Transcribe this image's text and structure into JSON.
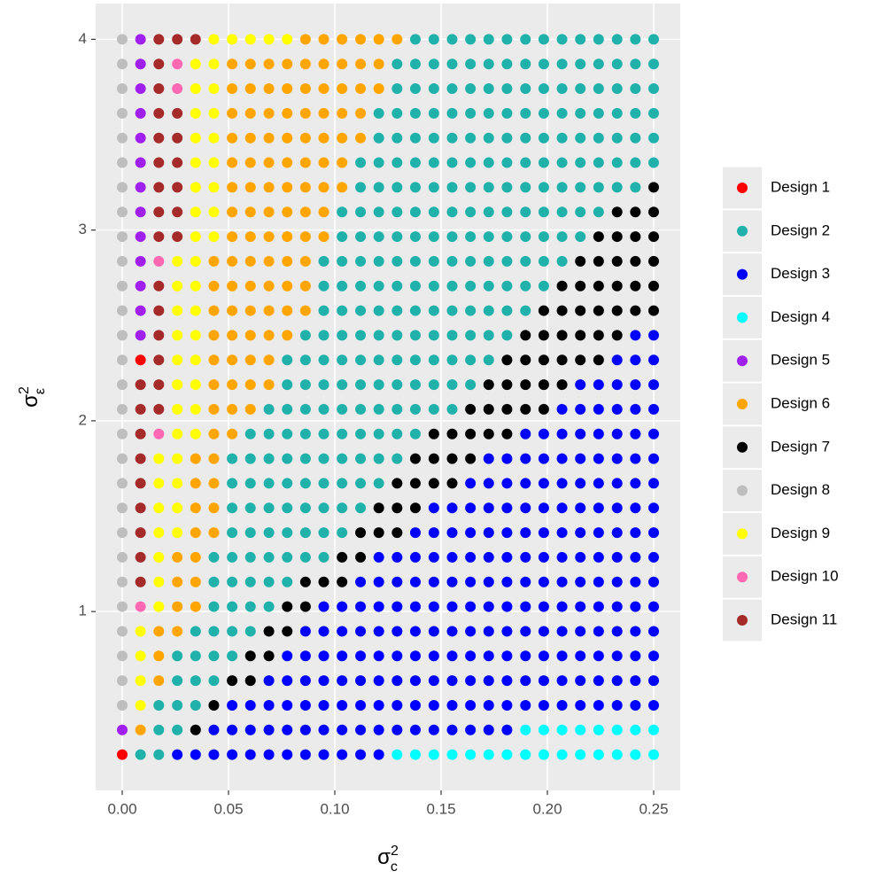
{
  "chart_data": {
    "type": "scatter",
    "x_label": {
      "base": "σ",
      "sup": "2",
      "sub": "c"
    },
    "y_label": {
      "base": "σ",
      "sup": "2",
      "sub": "ε"
    },
    "xlim": [
      -0.0125,
      0.2625
    ],
    "ylim": [
      0.0625,
      4.1875
    ],
    "xticks": [
      {
        "value": 0,
        "label": "0.00"
      },
      {
        "value": 0.05,
        "label": "0.05"
      },
      {
        "value": 0.1,
        "label": "0.10"
      },
      {
        "value": 0.15,
        "label": "0.15"
      },
      {
        "value": 0.2,
        "label": "0.20"
      },
      {
        "value": 0.25,
        "label": "0.25"
      }
    ],
    "yticks": [
      1,
      2,
      3,
      4
    ],
    "grid": true,
    "legend": "right",
    "x": [
      0,
      0.0086,
      0.0172,
      0.0259,
      0.0345,
      0.0431,
      0.0517,
      0.0603,
      0.069,
      0.0776,
      0.0862,
      0.0948,
      0.1034,
      0.1121,
      0.1207,
      0.1293,
      0.1379,
      0.1466,
      0.1552,
      0.1638,
      0.1724,
      0.181,
      0.1897,
      0.1983,
      0.2069,
      0.2155,
      0.2241,
      0.2328,
      0.2414,
      0.25
    ],
    "y": [
      0.25,
      0.3793,
      0.5086,
      0.6379,
      0.7672,
      0.8966,
      1.0259,
      1.1552,
      1.2845,
      1.4138,
      1.5431,
      1.6724,
      1.8017,
      1.931,
      2.0603,
      2.1897,
      2.319,
      2.4483,
      2.5776,
      2.7069,
      2.8362,
      2.9655,
      3.0948,
      3.2241,
      3.3534,
      3.4828,
      3.6121,
      3.7414,
      3.8707,
      4
    ],
    "series": [
      {
        "name": "Design 1",
        "color": "#ff0000"
      },
      {
        "name": "Design 2",
        "color": "#20b2aa"
      },
      {
        "name": "Design 3",
        "color": "#0000ff"
      },
      {
        "name": "Design 4",
        "color": "#00ffff"
      },
      {
        "name": "Design 5",
        "color": "#a020f0"
      },
      {
        "name": "Design 6",
        "color": "#ffa500"
      },
      {
        "name": "Design 7",
        "color": "#000000"
      },
      {
        "name": "Design 8",
        "color": "#bebebe"
      },
      {
        "name": "Design 9",
        "color": "#ffff00"
      },
      {
        "name": "Design 10",
        "color": "#ff69b4"
      },
      {
        "name": "Design 11",
        "color": "#a52a2a"
      }
    ],
    "design": [
      [
        1,
        2,
        2,
        3,
        3,
        3,
        3,
        3,
        3,
        3,
        3,
        3,
        3,
        3,
        3,
        4,
        4,
        4,
        4,
        4,
        4,
        4,
        4,
        4,
        4,
        4,
        4,
        4,
        4,
        4
      ],
      [
        5,
        6,
        2,
        2,
        7,
        3,
        3,
        3,
        3,
        3,
        3,
        3,
        3,
        3,
        3,
        3,
        3,
        3,
        3,
        3,
        3,
        3,
        4,
        4,
        4,
        4,
        4,
        4,
        4,
        4
      ],
      [
        8,
        9,
        2,
        2,
        2,
        7,
        3,
        3,
        3,
        3,
        3,
        3,
        3,
        3,
        3,
        3,
        3,
        3,
        3,
        3,
        3,
        3,
        3,
        3,
        3,
        3,
        3,
        3,
        3,
        3
      ],
      [
        8,
        9,
        6,
        2,
        2,
        2,
        7,
        7,
        3,
        3,
        3,
        3,
        3,
        3,
        3,
        3,
        3,
        3,
        3,
        3,
        3,
        3,
        3,
        3,
        3,
        3,
        3,
        3,
        3,
        3
      ],
      [
        8,
        9,
        6,
        2,
        2,
        2,
        2,
        7,
        7,
        3,
        3,
        3,
        3,
        3,
        3,
        3,
        3,
        3,
        3,
        3,
        3,
        3,
        3,
        3,
        3,
        3,
        3,
        3,
        3,
        3
      ],
      [
        8,
        9,
        6,
        6,
        2,
        2,
        2,
        2,
        7,
        7,
        3,
        3,
        3,
        3,
        3,
        3,
        3,
        3,
        3,
        3,
        3,
        3,
        3,
        3,
        3,
        3,
        3,
        3,
        3,
        3
      ],
      [
        8,
        10,
        9,
        6,
        6,
        2,
        2,
        2,
        2,
        7,
        7,
        3,
        3,
        3,
        3,
        3,
        3,
        3,
        3,
        3,
        3,
        3,
        3,
        3,
        3,
        3,
        3,
        3,
        3,
        3
      ],
      [
        8,
        11,
        9,
        6,
        6,
        2,
        2,
        2,
        2,
        2,
        7,
        7,
        7,
        3,
        3,
        3,
        3,
        3,
        3,
        3,
        3,
        3,
        3,
        3,
        3,
        3,
        3,
        3,
        3,
        3
      ],
      [
        8,
        11,
        9,
        6,
        6,
        2,
        2,
        2,
        2,
        2,
        2,
        2,
        7,
        7,
        3,
        3,
        3,
        3,
        3,
        3,
        3,
        3,
        3,
        3,
        3,
        3,
        3,
        3,
        3,
        3
      ],
      [
        8,
        11,
        9,
        9,
        6,
        6,
        2,
        2,
        2,
        2,
        2,
        2,
        2,
        7,
        7,
        7,
        3,
        3,
        3,
        3,
        3,
        3,
        3,
        3,
        3,
        3,
        3,
        3,
        3,
        3
      ],
      [
        8,
        11,
        9,
        9,
        6,
        6,
        2,
        2,
        2,
        2,
        2,
        2,
        2,
        2,
        7,
        7,
        7,
        3,
        3,
        3,
        3,
        3,
        3,
        3,
        3,
        3,
        3,
        3,
        3,
        3
      ],
      [
        8,
        11,
        9,
        9,
        6,
        6,
        2,
        2,
        2,
        2,
        2,
        2,
        2,
        2,
        2,
        7,
        7,
        7,
        7,
        3,
        3,
        3,
        3,
        3,
        3,
        3,
        3,
        3,
        3,
        3
      ],
      [
        8,
        11,
        9,
        9,
        6,
        6,
        2,
        2,
        2,
        2,
        2,
        2,
        2,
        2,
        2,
        2,
        7,
        7,
        7,
        7,
        3,
        3,
        3,
        3,
        3,
        3,
        3,
        3,
        3,
        3
      ],
      [
        8,
        11,
        10,
        9,
        9,
        6,
        6,
        2,
        2,
        2,
        2,
        2,
        2,
        2,
        2,
        2,
        2,
        7,
        7,
        7,
        7,
        7,
        3,
        3,
        3,
        3,
        3,
        3,
        3,
        3
      ],
      [
        8,
        11,
        11,
        9,
        9,
        6,
        6,
        6,
        2,
        2,
        2,
        2,
        2,
        2,
        2,
        2,
        2,
        2,
        2,
        7,
        7,
        7,
        7,
        7,
        3,
        3,
        3,
        3,
        3,
        3
      ],
      [
        8,
        11,
        11,
        9,
        9,
        6,
        6,
        6,
        6,
        2,
        2,
        2,
        2,
        2,
        2,
        2,
        2,
        2,
        2,
        2,
        7,
        7,
        7,
        7,
        7,
        3,
        3,
        3,
        3,
        3
      ],
      [
        8,
        1,
        11,
        9,
        9,
        6,
        6,
        6,
        6,
        2,
        2,
        2,
        2,
        2,
        2,
        2,
        2,
        2,
        2,
        2,
        2,
        7,
        7,
        7,
        7,
        7,
        7,
        3,
        3,
        3
      ],
      [
        8,
        5,
        11,
        9,
        9,
        6,
        6,
        6,
        6,
        6,
        2,
        2,
        2,
        2,
        2,
        2,
        2,
        2,
        2,
        2,
        2,
        2,
        7,
        7,
        7,
        7,
        7,
        7,
        3,
        3
      ],
      [
        8,
        5,
        11,
        9,
        9,
        6,
        6,
        6,
        6,
        6,
        6,
        2,
        2,
        2,
        2,
        2,
        2,
        2,
        2,
        2,
        2,
        2,
        2,
        7,
        7,
        7,
        7,
        7,
        7,
        7
      ],
      [
        8,
        5,
        11,
        9,
        9,
        6,
        6,
        6,
        6,
        6,
        6,
        2,
        2,
        2,
        2,
        2,
        2,
        2,
        2,
        2,
        2,
        2,
        2,
        2,
        7,
        7,
        7,
        7,
        7,
        7
      ],
      [
        8,
        5,
        10,
        9,
        9,
        6,
        6,
        6,
        6,
        6,
        6,
        2,
        2,
        2,
        2,
        2,
        2,
        2,
        2,
        2,
        2,
        2,
        2,
        2,
        2,
        7,
        7,
        7,
        7,
        7
      ],
      [
        8,
        5,
        11,
        11,
        9,
        9,
        6,
        6,
        6,
        6,
        6,
        6,
        2,
        2,
        2,
        2,
        2,
        2,
        2,
        2,
        2,
        2,
        2,
        2,
        2,
        2,
        7,
        7,
        7,
        7
      ],
      [
        8,
        5,
        11,
        11,
        9,
        9,
        6,
        6,
        6,
        6,
        6,
        6,
        2,
        2,
        2,
        2,
        2,
        2,
        2,
        2,
        2,
        2,
        2,
        2,
        2,
        2,
        2,
        7,
        7,
        7
      ],
      [
        8,
        5,
        11,
        11,
        9,
        9,
        6,
        6,
        6,
        6,
        6,
        6,
        6,
        2,
        2,
        2,
        2,
        2,
        2,
        2,
        2,
        2,
        2,
        2,
        2,
        2,
        2,
        2,
        2,
        7
      ],
      [
        8,
        5,
        11,
        11,
        9,
        9,
        6,
        6,
        6,
        6,
        6,
        6,
        6,
        2,
        2,
        2,
        2,
        2,
        2,
        2,
        2,
        2,
        2,
        2,
        2,
        2,
        2,
        2,
        2,
        2
      ],
      [
        8,
        5,
        11,
        11,
        9,
        9,
        6,
        6,
        6,
        6,
        6,
        6,
        6,
        6,
        2,
        2,
        2,
        2,
        2,
        2,
        2,
        2,
        2,
        2,
        2,
        2,
        2,
        2,
        2,
        2
      ],
      [
        8,
        5,
        11,
        11,
        9,
        9,
        6,
        6,
        6,
        6,
        6,
        6,
        6,
        6,
        2,
        2,
        2,
        2,
        2,
        2,
        2,
        2,
        2,
        2,
        2,
        2,
        2,
        2,
        2,
        2
      ],
      [
        8,
        5,
        11,
        10,
        9,
        9,
        6,
        6,
        6,
        6,
        6,
        6,
        6,
        6,
        6,
        2,
        2,
        2,
        2,
        2,
        2,
        2,
        2,
        2,
        2,
        2,
        2,
        2,
        2,
        2
      ],
      [
        8,
        5,
        11,
        10,
        9,
        9,
        6,
        6,
        6,
        6,
        6,
        6,
        6,
        6,
        6,
        2,
        2,
        2,
        2,
        2,
        2,
        2,
        2,
        2,
        2,
        2,
        2,
        2,
        2,
        2
      ],
      [
        8,
        5,
        11,
        11,
        11,
        9,
        9,
        9,
        9,
        9,
        6,
        6,
        6,
        6,
        6,
        6,
        2,
        2,
        2,
        2,
        2,
        2,
        2,
        2,
        2,
        2,
        2,
        2,
        2,
        2
      ]
    ]
  }
}
